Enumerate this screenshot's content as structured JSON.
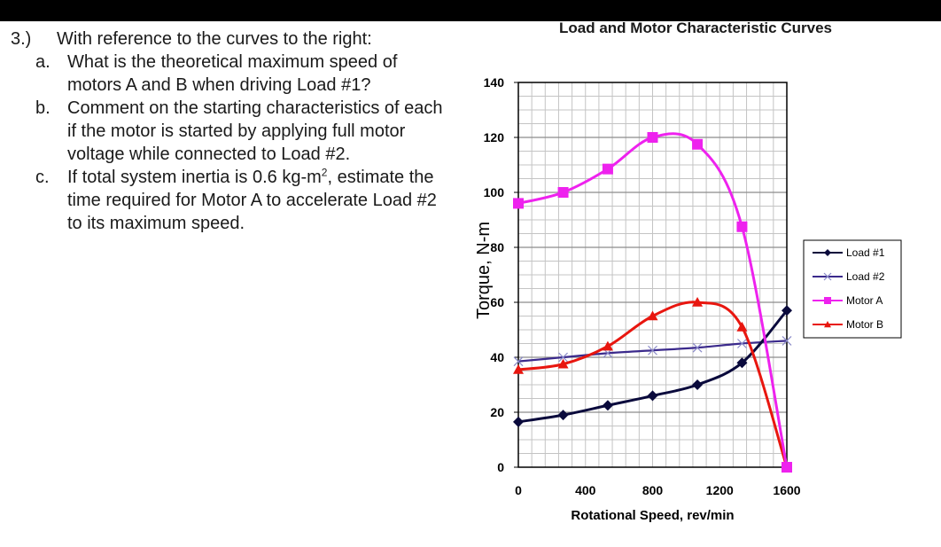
{
  "question": {
    "number": "3.)",
    "prompt": "With reference to the curves to the right:",
    "items": [
      {
        "letter": "a.",
        "text": "What is the theoretical maximum speed of motors A and B when driving Load #1?"
      },
      {
        "letter": "b.",
        "text": "Comment on the starting characteristics of each if the motor is started by applying full motor voltage while connected to Load #2."
      },
      {
        "letter": "c.",
        "text_before": "If total system inertia is 0.6 kg-m",
        "superscript": "2",
        "text_after": ", estimate the time required for Motor A to accelerate Load #2 to its maximum speed."
      }
    ]
  },
  "chart_data": {
    "type": "line",
    "title": "Load and Motor Characteristic  Curves",
    "xlabel": "Rotational Speed, rev/min",
    "ylabel": "Torque, N-m",
    "xlim": [
      0,
      1600
    ],
    "ylim": [
      0,
      140
    ],
    "xticks": [
      0,
      400,
      800,
      1200,
      1600
    ],
    "yticks": [
      0,
      20,
      40,
      60,
      80,
      100,
      120,
      140
    ],
    "grid": true,
    "legend_position": "right",
    "series": [
      {
        "name": "Load #1",
        "color": "#0a0a3c",
        "marker": "diamond",
        "x": [
          0,
          267,
          533,
          800,
          1067,
          1333,
          1600
        ],
        "y": [
          16.5,
          19,
          22.5,
          26,
          30,
          38,
          57
        ]
      },
      {
        "name": "Load #2",
        "color": "#3b2a8c",
        "marker": "x",
        "x": [
          0,
          267,
          533,
          800,
          1067,
          1333,
          1600
        ],
        "y": [
          38.5,
          40,
          41.5,
          42.5,
          43.5,
          45,
          46
        ]
      },
      {
        "name": "Motor A",
        "color": "#ee22ee",
        "marker": "square",
        "x": [
          0,
          267,
          533,
          800,
          1067,
          1333,
          1600
        ],
        "y": [
          96,
          100,
          108.5,
          120,
          117.5,
          87.5,
          0
        ]
      },
      {
        "name": "Motor B",
        "color": "#e8160f",
        "marker": "triangle",
        "x": [
          0,
          267,
          533,
          800,
          1067,
          1333,
          1600
        ],
        "y": [
          35.5,
          37.5,
          44,
          55,
          60,
          51,
          0
        ]
      }
    ]
  }
}
